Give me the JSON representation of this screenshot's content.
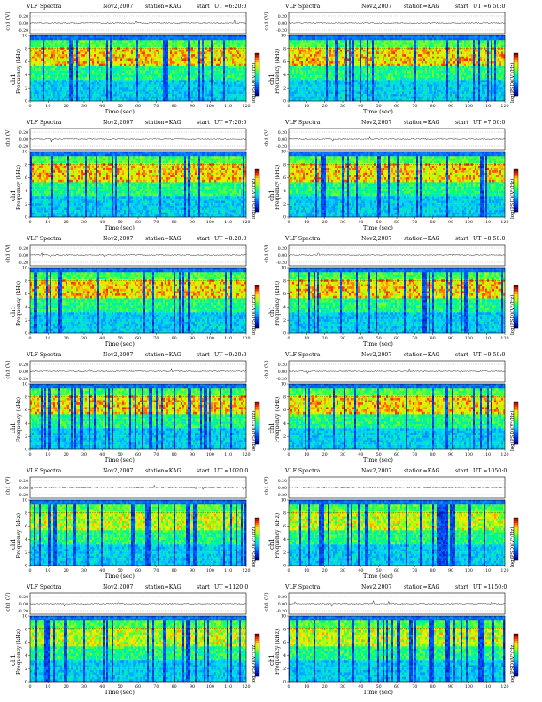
{
  "common": {
    "title": "VLF Spectra",
    "date": "Nov2,2007",
    "station": "station=KAG",
    "start_label": "start",
    "wave_ylabel": "ch1 (V)",
    "freq_ylabel_top": "ch1",
    "freq_ylabel": "Frequency (kHz)",
    "xlabel": "Time (sec)",
    "colorbar_label": "log(PSD)(V²/Hz)",
    "wave_ticks": [
      "0.20",
      "0.00",
      "-0.20"
    ],
    "freq_ticks": [
      "0",
      "2",
      "4",
      "6",
      "8",
      "10"
    ],
    "time_ticks": [
      "0",
      "10",
      "20",
      "30",
      "40",
      "50",
      "60",
      "70",
      "80",
      "90",
      "100",
      "110",
      "120"
    ],
    "colors": {
      "low": "#0000aa",
      "mid_low": "#00c8ff",
      "mid": "#00ff66",
      "mid_high": "#ffff00",
      "high": "#ff2200",
      "top": "#880000"
    }
  },
  "panels": [
    {
      "ut": "UT =6:20:0"
    },
    {
      "ut": "UT =6:50:0"
    },
    {
      "ut": "UT =7:20:0"
    },
    {
      "ut": "UT =7:50:0"
    },
    {
      "ut": "UT =8:20:0"
    },
    {
      "ut": "UT =8:50:0"
    },
    {
      "ut": "UT =9:20:0"
    },
    {
      "ut": "UT =9:50:0"
    },
    {
      "ut": "UT =1020:0"
    },
    {
      "ut": "UT =1050:0"
    },
    {
      "ut": "UT =1120:0"
    },
    {
      "ut": "UT =1150:0"
    }
  ],
  "chart_data": {
    "type": "heatmap",
    "xlabel": "Time (sec)",
    "ylabel": "Frequency (kHz)",
    "xlim": [
      0,
      120
    ],
    "ylim": [
      0,
      10
    ],
    "colorbar": "log(PSD)(V²/Hz)",
    "grid": false,
    "panel_count": 12
  }
}
